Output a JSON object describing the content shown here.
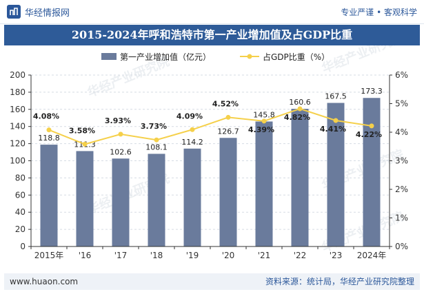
{
  "header": {
    "brand": "华经情报网",
    "slogan": "专业严谨 • 客观科学"
  },
  "title": "2015-2024年呼和浩特市第一产业增加值及占GDP比重",
  "legend": {
    "bar": "第一产业增加值（亿元）",
    "line": "占GDP比重（%）"
  },
  "watermark": "华经产业研究院",
  "footer": {
    "url": "www.huaon.com",
    "source": "资料来源：统计局，华经产业研究院整理"
  },
  "colors": {
    "bar": "#6a7b9c",
    "line": "#f5d04a",
    "banner": "#2e5b98"
  },
  "chart_data": {
    "type": "bar+line",
    "categories": [
      "2015年",
      "'16",
      "'17",
      "'18",
      "'19",
      "'20",
      "'21",
      "'22",
      "'23",
      "2024年"
    ],
    "series": [
      {
        "name": "第一产业增加值（亿元）",
        "type": "bar",
        "axis": "left",
        "values": [
          118.8,
          111.3,
          102.6,
          108.1,
          114.2,
          126.7,
          145.8,
          160.6,
          167.5,
          173.3
        ],
        "labels": [
          "118.8",
          "111.3",
          "102.6",
          "108.1",
          "114.2",
          "126.7",
          "145.8",
          "160.6",
          "167.5",
          "173.3"
        ]
      },
      {
        "name": "占GDP比重（%）",
        "type": "line",
        "axis": "right",
        "values": [
          4.08,
          3.58,
          3.93,
          3.73,
          4.09,
          4.52,
          4.39,
          4.82,
          4.41,
          4.22
        ],
        "labels": [
          "4.08%",
          "3.58%",
          "3.93%",
          "3.73%",
          "4.09%",
          "4.52%",
          "4.39%",
          "4.82%",
          "4.41%",
          "4.22%"
        ]
      }
    ],
    "y_left": {
      "min": 0,
      "max": 200,
      "ticks": [
        "0",
        "20",
        "40",
        "60",
        "80",
        "100",
        "120",
        "140",
        "160",
        "180",
        "200"
      ]
    },
    "y_right": {
      "min": 0,
      "max": 6,
      "ticks": [
        "0%",
        "1%",
        "2%",
        "3%",
        "4%",
        "5%",
        "6%"
      ]
    }
  }
}
